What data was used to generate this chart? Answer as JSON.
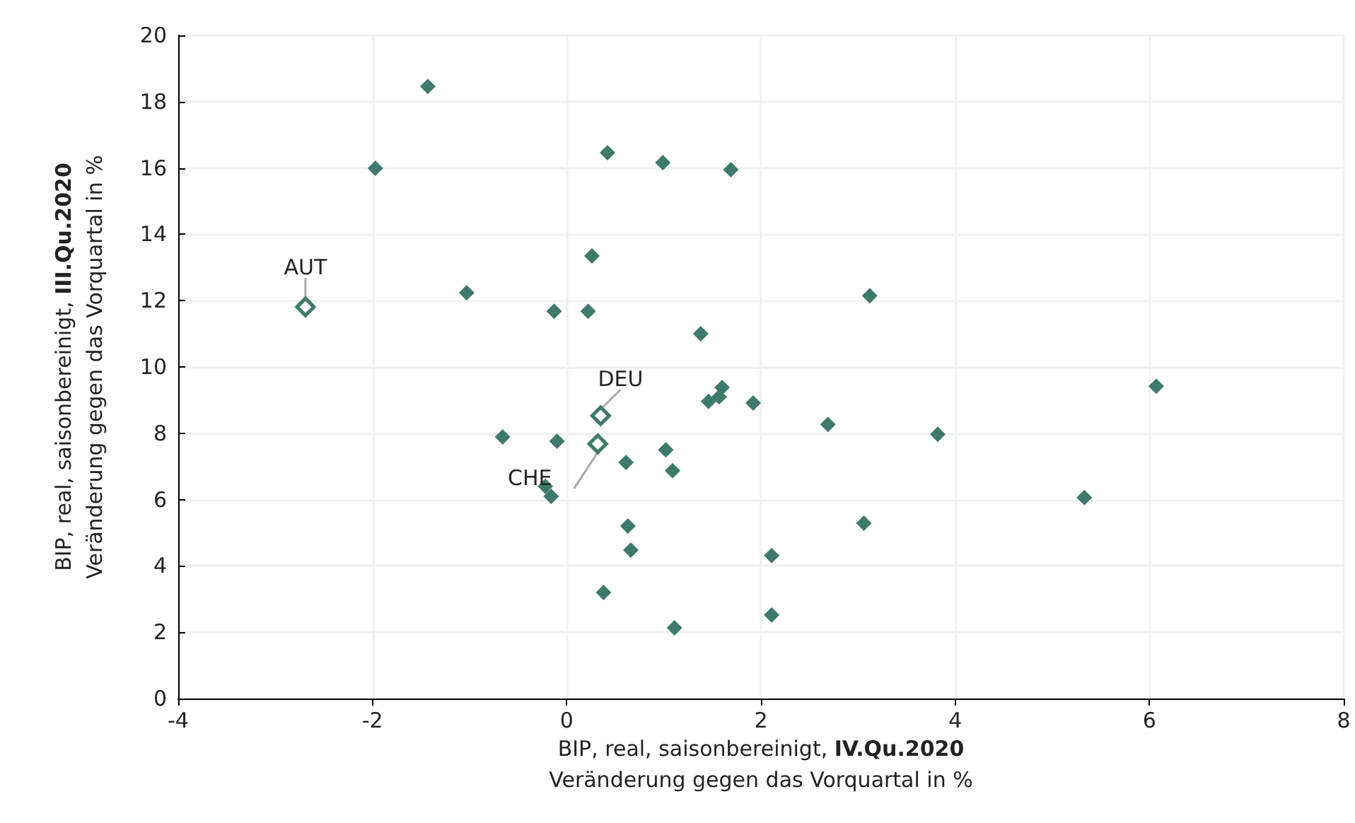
{
  "chart_data": {
    "type": "scatter",
    "xlabel": "BIP, real, saisonbereinigt, IV.Qu.2020\nVeränderung gegen das Vorquartal in %",
    "ylabel": "BIP, real, saisonbereinigt, III.Qu.2020\nVeränderung gegen das Vorquartal in %",
    "xlim": [
      -4,
      8
    ],
    "xticks": [
      -4,
      -2,
      0,
      2,
      4,
      6,
      8
    ],
    "ylim": [
      0,
      20
    ],
    "yticks": [
      0,
      2,
      4,
      6,
      8,
      10,
      12,
      14,
      16,
      18,
      20
    ],
    "grid": true,
    "marker": "diamond",
    "series": [
      {
        "color": "#3d7a6b",
        "x": [
          -1.43,
          -1.97,
          0.42,
          0.99,
          1.69,
          0.26,
          -1.03,
          -0.13,
          0.22,
          3.12,
          1.38,
          1.6,
          1.57,
          1.46,
          1.92,
          2.69,
          3.82,
          6.07,
          -0.66,
          -0.1,
          0.61,
          1.02,
          1.09,
          -0.22,
          -0.16,
          5.33,
          0.63,
          0.66,
          3.06,
          2.11,
          0.38,
          1.11,
          2.11
        ],
        "values": [
          18.46,
          15.99,
          16.46,
          16.16,
          15.95,
          13.35,
          12.24,
          11.68,
          11.68,
          12.15,
          11.0,
          9.38,
          9.1,
          8.96,
          8.91,
          8.27,
          7.97,
          9.42,
          7.89,
          7.76,
          7.12,
          7.5,
          6.87,
          6.4,
          6.1,
          6.06,
          5.2,
          4.48,
          5.29,
          4.31,
          3.2,
          2.13,
          2.52
        ]
      },
      {
        "color": "#3d7a6b",
        "x": [
          -2.69,
          0.35,
          0.32
        ],
        "values": [
          11.81,
          8.53,
          7.68
        ]
      }
    ],
    "annotations": [
      {
        "text": "AUT",
        "x": -2.69,
        "y": 11.81
      },
      {
        "text": "DEU",
        "x": 0.35,
        "y": 8.53
      },
      {
        "text": "CHE",
        "x": 0.32,
        "y": 7.68
      }
    ]
  }
}
